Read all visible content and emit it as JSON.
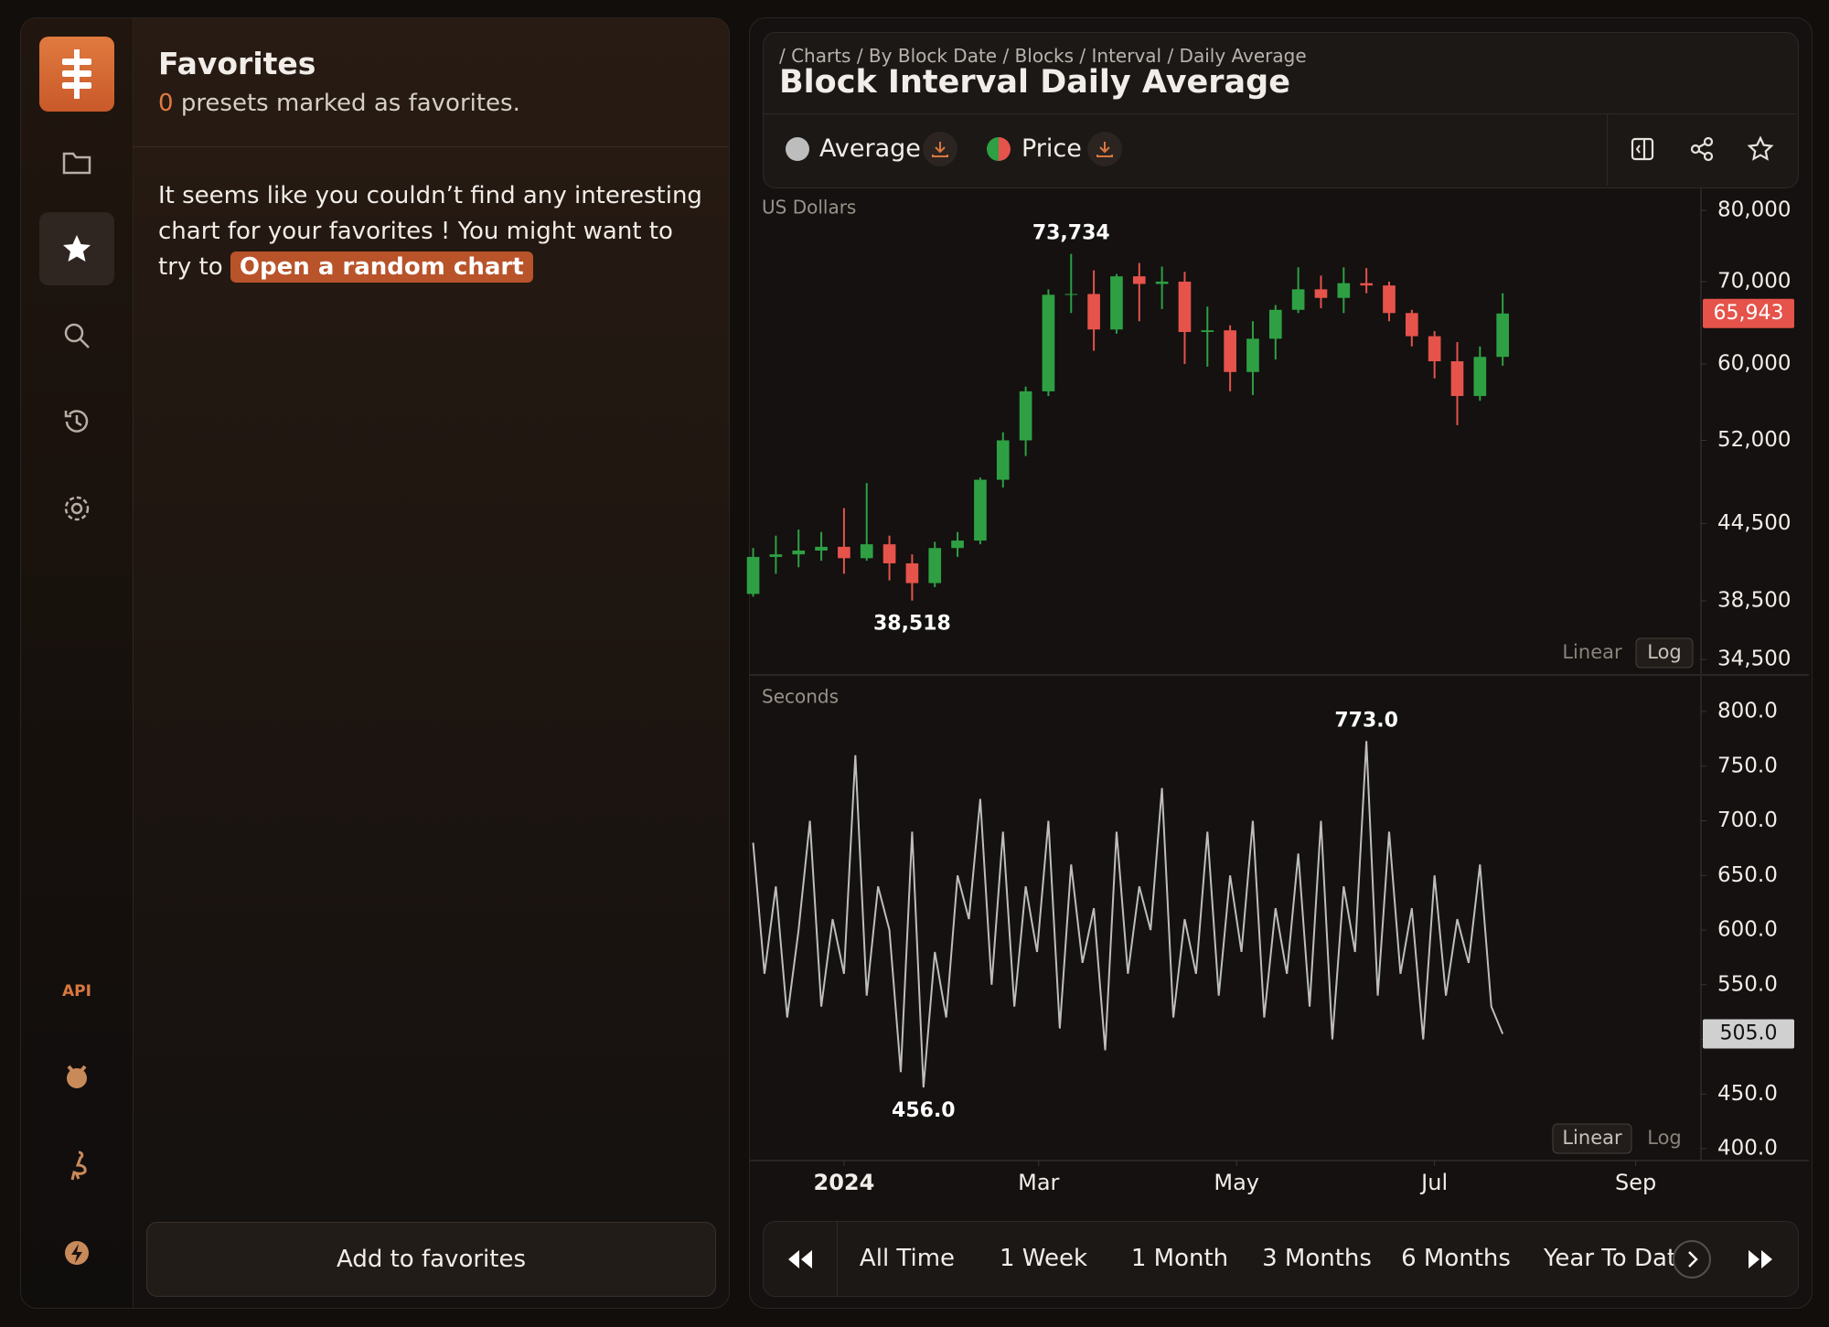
{
  "sidebar": {
    "api": "API"
  },
  "favorites": {
    "title": "Favorites",
    "count": "0",
    "subtitle": "presets marked as favorites.",
    "message": "It seems like you couldn’t find any interesting chart for your favorites ! You might want to try to",
    "random_button": "Open a random chart",
    "add_button": "Add to favorites"
  },
  "header": {
    "breadcrumb": "/ Charts / By Block Date / Blocks / Interval / Daily Average",
    "title": "Block Interval Daily Average"
  },
  "chart_data": [
    {
      "type": "candlestick",
      "name": "Price",
      "axis_label": "US Dollars",
      "up_color": "#2ea043",
      "down_color": "#e5534b",
      "open": [
        39000,
        41800,
        42000,
        42300,
        42600,
        41700,
        42800,
        41300,
        39800,
        42500,
        43100,
        48300,
        52000,
        57000,
        68300,
        68400,
        64000,
        70700,
        69700,
        70000,
        63700,
        63900,
        59100,
        62900,
        66400,
        69000,
        67900,
        69800,
        69500,
        66000,
        63200,
        60300,
        56500,
        60800
      ],
      "high": [
        42500,
        43500,
        44000,
        43800,
        45800,
        48000,
        43500,
        42000,
        43000,
        43800,
        48500,
        52800,
        57500,
        69000,
        73734,
        71500,
        71000,
        72500,
        72000,
        71300,
        66800,
        64500,
        65000,
        67000,
        71900,
        70800,
        71900,
        71800,
        70000,
        66400,
        63800,
        62500,
        62000,
        68500
      ],
      "low": [
        38800,
        40500,
        41000,
        41500,
        40500,
        41500,
        40000,
        38518,
        39500,
        41800,
        42800,
        47600,
        50500,
        56500,
        66000,
        61500,
        63500,
        65000,
        66500,
        60000,
        59700,
        57000,
        56600,
        60500,
        66000,
        66600,
        66000,
        68500,
        65000,
        62000,
        58400,
        53500,
        56000,
        59800
      ],
      "close": [
        41800,
        42000,
        42300,
        42600,
        41700,
        42800,
        41300,
        39800,
        42500,
        43100,
        48300,
        52000,
        57000,
        68300,
        68400,
        64000,
        70700,
        69700,
        70000,
        63700,
        63900,
        59100,
        62900,
        66400,
        69000,
        67900,
        69800,
        69500,
        66000,
        63200,
        60300,
        56500,
        60800,
        65943
      ],
      "xlim": [
        -0.143,
        41.73
      ],
      "ylim": [
        34500,
        80000
      ],
      "log_scale": true,
      "yticks": [
        {
          "value": 34500,
          "label": "34,500"
        },
        {
          "value": 38500,
          "label": "38,500"
        },
        {
          "value": 44500,
          "label": "44,500"
        },
        {
          "value": 52000,
          "label": "52,000"
        },
        {
          "value": 60000,
          "label": "60,000"
        },
        {
          "value": 70000,
          "label": "70,000"
        },
        {
          "value": 80000,
          "label": "80,000"
        }
      ],
      "max_label": "73,734",
      "min_label": "38,518",
      "last_label": "65,943",
      "scale_toggle": [
        "Linear",
        "Log"
      ]
    },
    {
      "type": "line",
      "name": "Average",
      "axis_label": "Seconds",
      "color": "#bdbdbd",
      "values": [
        680,
        560,
        640,
        520,
        600,
        700,
        530,
        610,
        560,
        760,
        540,
        640,
        600,
        470,
        690,
        456,
        580,
        520,
        650,
        610,
        720,
        550,
        690,
        530,
        640,
        580,
        700,
        510,
        660,
        570,
        620,
        490,
        690,
        560,
        640,
        600,
        730,
        520,
        610,
        560,
        690,
        540,
        650,
        580,
        700,
        520,
        620,
        560,
        670,
        530,
        700,
        500,
        640,
        580,
        773,
        540,
        690,
        560,
        620,
        500,
        650,
        540,
        610,
        570,
        660,
        530,
        505
      ],
      "xlim": [
        -0.286,
        83.46
      ],
      "xticks": [
        {
          "value": 8,
          "label": "2024"
        },
        {
          "value": 25.14,
          "label": "Mar"
        },
        {
          "value": 42.57,
          "label": "May"
        },
        {
          "value": 60,
          "label": "Jul"
        },
        {
          "value": 77.71,
          "label": "Sep"
        }
      ],
      "ylim": [
        400,
        800
      ],
      "log_scale": false,
      "yticks": [
        {
          "value": 400,
          "label": "400.0"
        },
        {
          "value": 450,
          "label": "450.0"
        },
        {
          "value": 500,
          "label": "500.0"
        },
        {
          "value": 550,
          "label": "550.0"
        },
        {
          "value": 600,
          "label": "600.0"
        },
        {
          "value": 650,
          "label": "650.0"
        },
        {
          "value": 700,
          "label": "700.0"
        },
        {
          "value": 750,
          "label": "750.0"
        },
        {
          "value": 800,
          "label": "800.0"
        }
      ],
      "max_label": "773.0",
      "min_label": "456.0",
      "last_label": "505.0",
      "scale_toggle": [
        "Linear",
        "Log"
      ]
    }
  ],
  "timeframes": [
    "All Time",
    "1 Week",
    "1 Month",
    "3 Months",
    "6 Months",
    "Year To Date"
  ]
}
